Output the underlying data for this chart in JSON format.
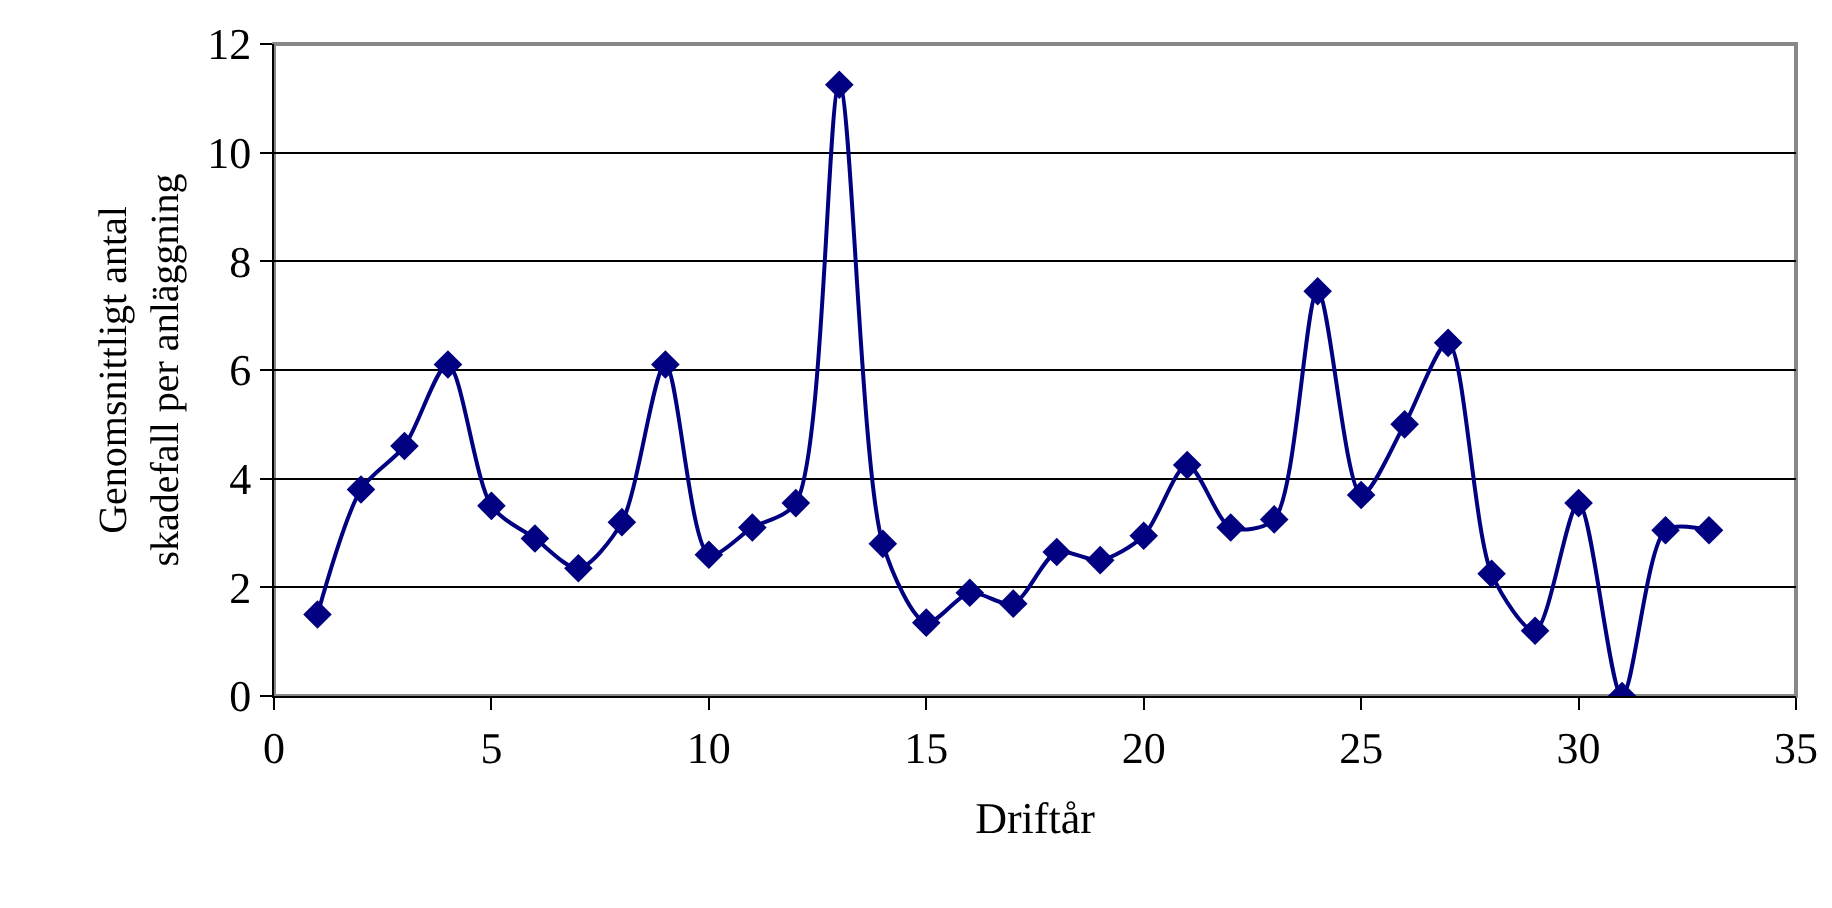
{
  "chart_data": {
    "type": "line",
    "xlabel": "Driftår",
    "ylabel": "Genomsnittligt antal\nskadefall per anläggning",
    "x": [
      1,
      2,
      3,
      4,
      5,
      6,
      7,
      8,
      9,
      10,
      11,
      12,
      13,
      14,
      15,
      16,
      17,
      18,
      19,
      20,
      21,
      22,
      23,
      24,
      25,
      26,
      27,
      28,
      29,
      30,
      31,
      32,
      33
    ],
    "series": [
      {
        "color": "#000080",
        "values": [
          1.5,
          3.8,
          4.6,
          6.1,
          3.5,
          2.9,
          2.35,
          3.2,
          6.1,
          2.6,
          3.1,
          3.55,
          11.25,
          2.8,
          1.35,
          1.9,
          1.7,
          2.65,
          2.5,
          2.95,
          4.25,
          3.1,
          3.25,
          7.45,
          3.7,
          5.0,
          6.5,
          2.25,
          1.2,
          3.55,
          0,
          3.05,
          3.05
        ]
      }
    ],
    "xlim": [
      0,
      35
    ],
    "xticks": [
      0,
      5,
      10,
      15,
      20,
      25,
      30,
      35
    ],
    "ylim": [
      0,
      12
    ],
    "yticks": [
      0,
      2,
      4,
      6,
      8,
      10,
      12
    ],
    "grid": "y",
    "marker": "diamond",
    "line_style": "solid"
  }
}
